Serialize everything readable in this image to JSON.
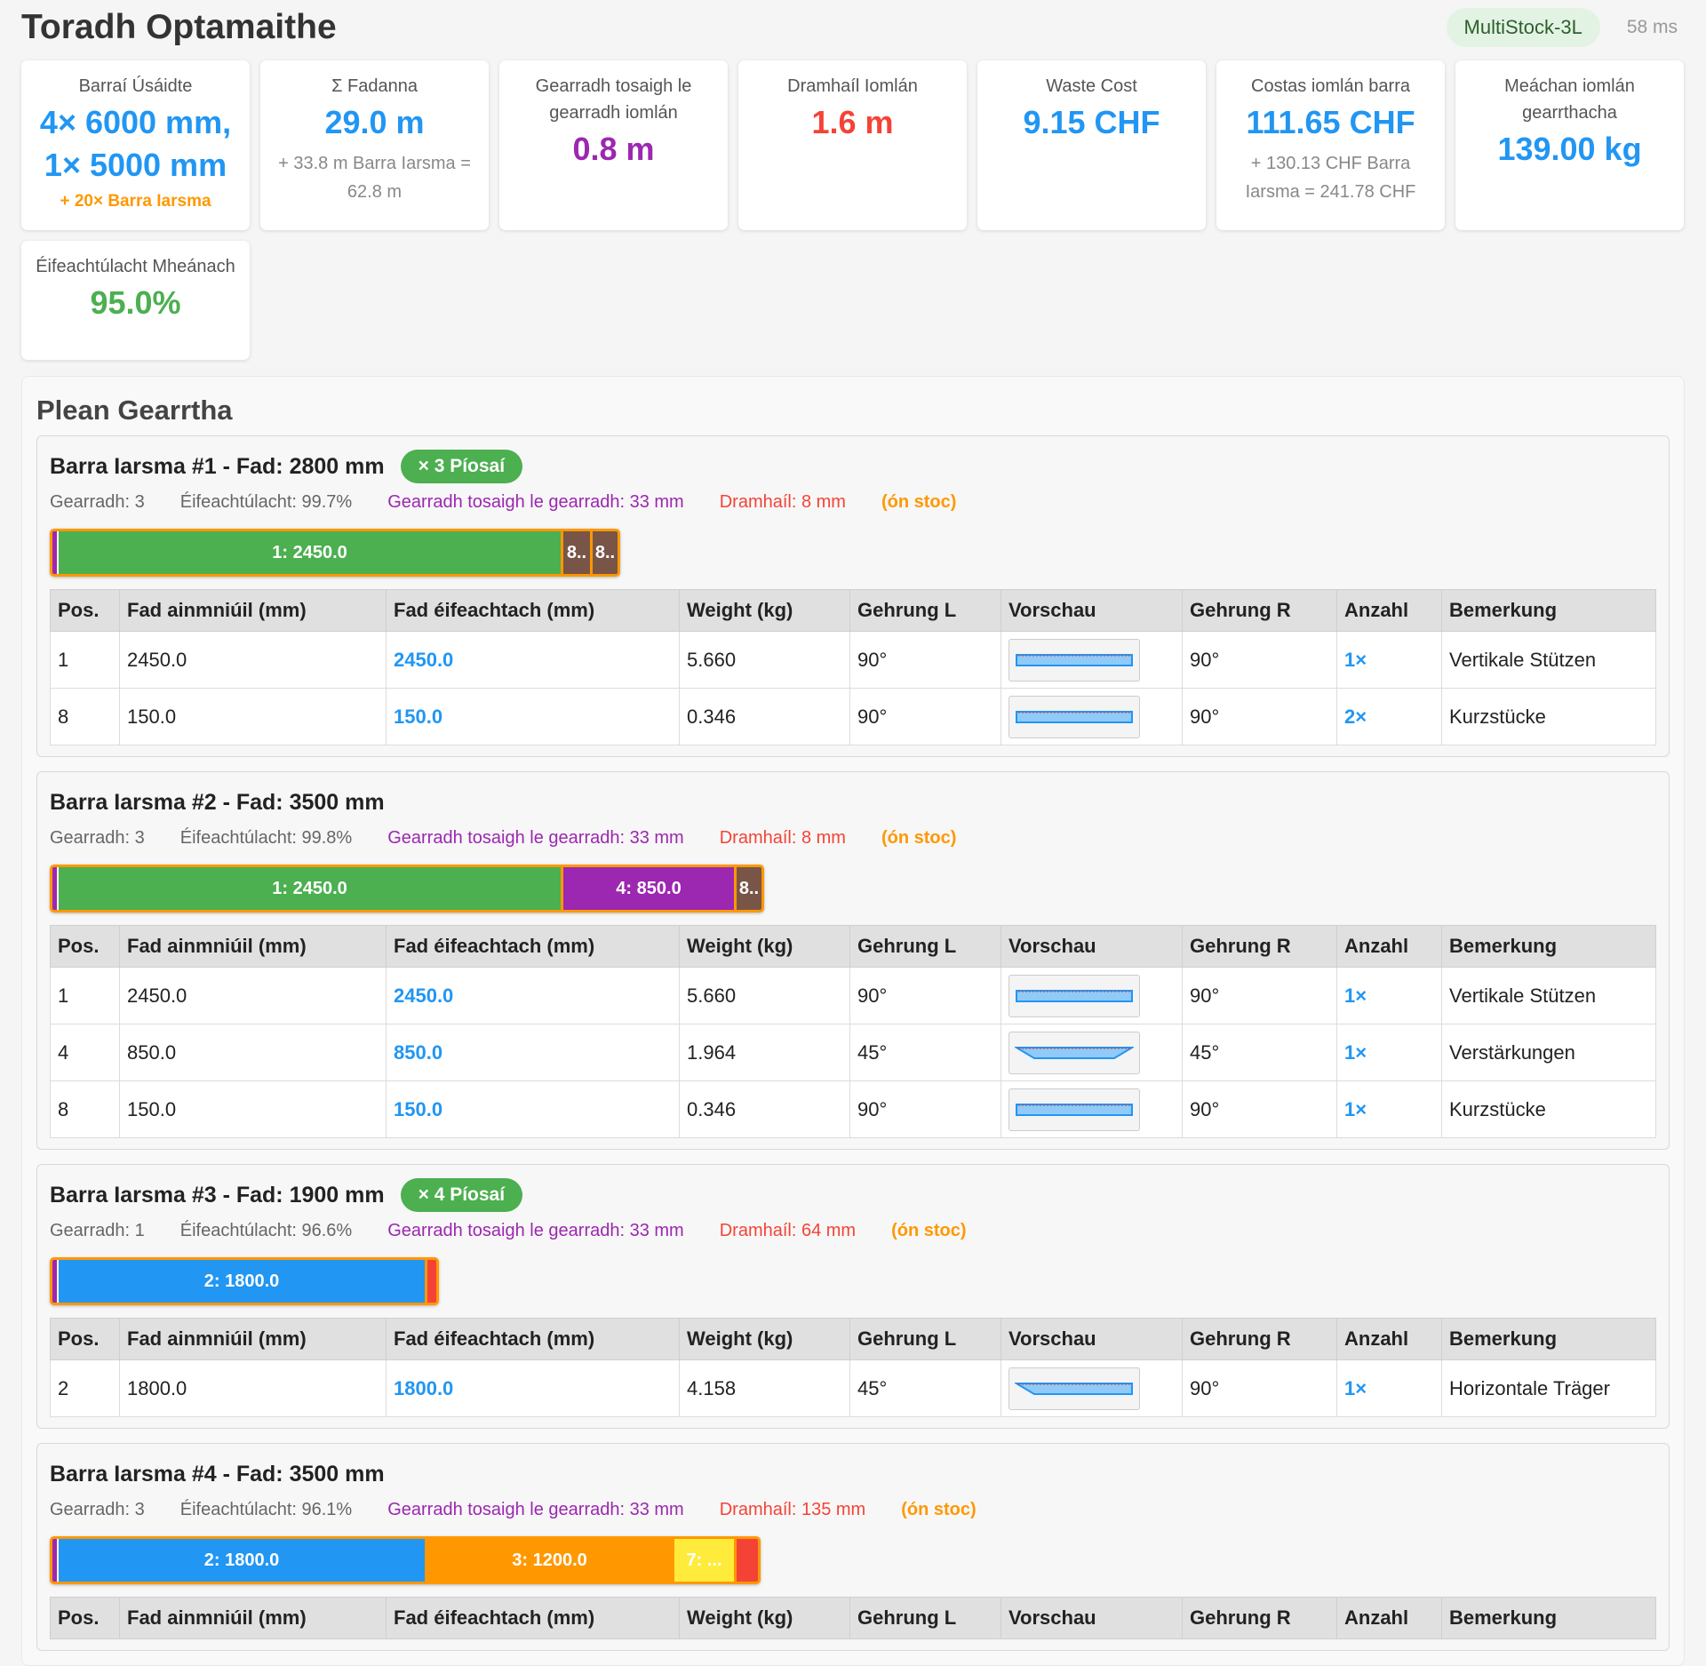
{
  "title": "Toradh Optamaithe",
  "algorithm": "MultiStock-3L",
  "time": "58 ms",
  "stats": {
    "bars_used": {
      "label": "Barraí Úsáidte",
      "line1": "4× 6000 mm,",
      "line2": "1× 5000 mm",
      "extra": "+ 20× Barra Iarsma"
    },
    "lengths": {
      "label": "Σ Fadanna",
      "value": "29.0 m",
      "sub": "+ 33.8 m Barra Iarsma = 62.8 m"
    },
    "kerf": {
      "label": "Gearradh tosaigh le gearradh iomlán",
      "value": "0.8 m"
    },
    "waste": {
      "label": "Dramhaíl Iomlán",
      "value": "1.6 m"
    },
    "waste_cost": {
      "label": "Waste Cost",
      "value": "9.15 CHF"
    },
    "total_cost": {
      "label": "Costas iomlán barra",
      "value": "111.65 CHF",
      "sub": "+ 130.13 CHF Barra Iarsma = 241.78 CHF"
    },
    "weight": {
      "label": "Meáchan iomlán gearrthacha",
      "value": "139.00 kg"
    },
    "efficiency": {
      "label": "Éifeachtúlacht Mheánach",
      "value": "95.0%"
    }
  },
  "plan": {
    "title": "Plean Gearrtha",
    "columns": [
      "Pos.",
      "Fad ainmniúil (mm)",
      "Fad éifeachtach (mm)",
      "Weight (kg)",
      "Gehrung L",
      "Vorschau",
      "Gehrung R",
      "Anzahl",
      "Bemerkung"
    ],
    "bars": [
      {
        "title": "Barra Iarsma #1 - Fad: 2800 mm",
        "badge": "× 3 Píosaí",
        "cuts": "Gearradh: 3",
        "efficiency": "Éifeachtúlacht: 99.7%",
        "kerf": "Gearradh tosaigh le gearradh: 33 mm",
        "waste": "Dramhaíl: 8 mm",
        "stock": "(ón stoc)",
        "segments": [
          {
            "label": "1: 2450.0",
            "color": "green",
            "width": 568
          },
          {
            "label": "8..",
            "color": "brown",
            "width": 33
          },
          {
            "label": "8..",
            "color": "brown",
            "width": 28
          }
        ],
        "rows": [
          {
            "pos": "1",
            "nominal": "2450.0",
            "effective": "2450.0",
            "weight": "5.660",
            "miter_l": "90°",
            "shape": "rect",
            "miter_r": "90°",
            "count": "1×",
            "note": "Vertikale Stützen"
          },
          {
            "pos": "8",
            "nominal": "150.0",
            "effective": "150.0",
            "weight": "0.346",
            "miter_l": "90°",
            "shape": "rect",
            "miter_r": "90°",
            "count": "2×",
            "note": "Kurzstücke"
          }
        ]
      },
      {
        "title": "Barra Iarsma #2 - Fad: 3500 mm",
        "badge": "",
        "cuts": "Gearradh: 3",
        "efficiency": "Éifeachtúlacht: 99.8%",
        "kerf": "Gearradh tosaigh le gearradh: 33 mm",
        "waste": "Dramhaíl: 8 mm",
        "stock": "(ón stoc)",
        "segments": [
          {
            "label": "1: 2450.0",
            "color": "green",
            "width": 568
          },
          {
            "label": "4: 850.0",
            "color": "purple",
            "width": 195
          },
          {
            "label": "8..",
            "color": "brown",
            "width": 28
          }
        ],
        "rows": [
          {
            "pos": "1",
            "nominal": "2450.0",
            "effective": "2450.0",
            "weight": "5.660",
            "miter_l": "90°",
            "shape": "rect",
            "miter_r": "90°",
            "count": "1×",
            "note": "Vertikale Stützen"
          },
          {
            "pos": "4",
            "nominal": "850.0",
            "effective": "850.0",
            "weight": "1.964",
            "miter_l": "45°",
            "shape": "trap",
            "miter_r": "45°",
            "count": "1×",
            "note": "Verstärkungen"
          },
          {
            "pos": "8",
            "nominal": "150.0",
            "effective": "150.0",
            "weight": "0.346",
            "miter_l": "90°",
            "shape": "rect",
            "miter_r": "90°",
            "count": "1×",
            "note": "Kurzstücke"
          }
        ]
      },
      {
        "title": "Barra Iarsma #3 - Fad: 1900 mm",
        "badge": "× 4 Píosaí",
        "cuts": "Gearradh: 1",
        "efficiency": "Éifeachtúlacht: 96.6%",
        "kerf": "Gearradh tosaigh le gearradh: 33 mm",
        "waste": "Dramhaíl: 64 mm",
        "stock": "(ón stoc)",
        "segments": [
          {
            "label": "2: 1800.0",
            "color": "blue",
            "width": 415
          },
          {
            "label": "",
            "color": "waste",
            "width": 10
          }
        ],
        "rows": [
          {
            "pos": "2",
            "nominal": "1800.0",
            "effective": "1800.0",
            "weight": "4.158",
            "miter_l": "45°",
            "shape": "trap-left",
            "miter_r": "90°",
            "count": "1×",
            "note": "Horizontale Träger"
          }
        ]
      },
      {
        "title": "Barra Iarsma #4 - Fad: 3500 mm",
        "badge": "",
        "cuts": "Gearradh: 3",
        "efficiency": "Éifeachtúlacht: 96.1%",
        "kerf": "Gearradh tosaigh le gearradh: 33 mm",
        "waste": "Dramhaíl: 135 mm",
        "stock": "(ón stoc)",
        "segments": [
          {
            "label": "2: 1800.0",
            "color": "blue",
            "width": 415
          },
          {
            "label": "3: 1200.0",
            "color": "orange",
            "width": 278
          },
          {
            "label": "7: ...",
            "color": "yellow",
            "width": 70
          },
          {
            "label": "",
            "color": "waste",
            "width": 24
          }
        ],
        "rows": []
      }
    ]
  }
}
